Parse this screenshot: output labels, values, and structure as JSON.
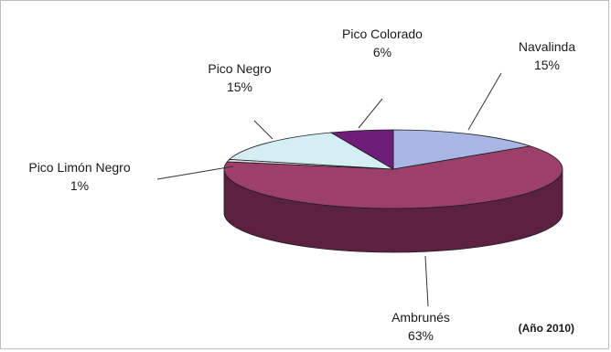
{
  "chart_data": {
    "type": "pie",
    "style": "3d",
    "slices": [
      {
        "name": "Navalinda",
        "value": 15,
        "label_pct": "15%",
        "color": "#a8b6e4",
        "side_color": "#7884b4"
      },
      {
        "name": "Ambrunés",
        "value": 63,
        "label_pct": "63%",
        "color": "#9c3f6b",
        "side_color": "#5c2140"
      },
      {
        "name": "Pico Limón Negro",
        "value": 1,
        "label_pct": "1%",
        "color": "#dcdcdc",
        "side_color": "#9a9a9a"
      },
      {
        "name": "Pico Negro",
        "value": 15,
        "label_pct": "15%",
        "color": "#d4eef3",
        "side_color": "#94b4ba"
      },
      {
        "name": "Pico Colorado",
        "value": 6,
        "label_pct": "6%",
        "color": "#6e1d78",
        "side_color": "#40104a"
      }
    ],
    "annotation": "(Año 2010)",
    "legend": "none"
  }
}
